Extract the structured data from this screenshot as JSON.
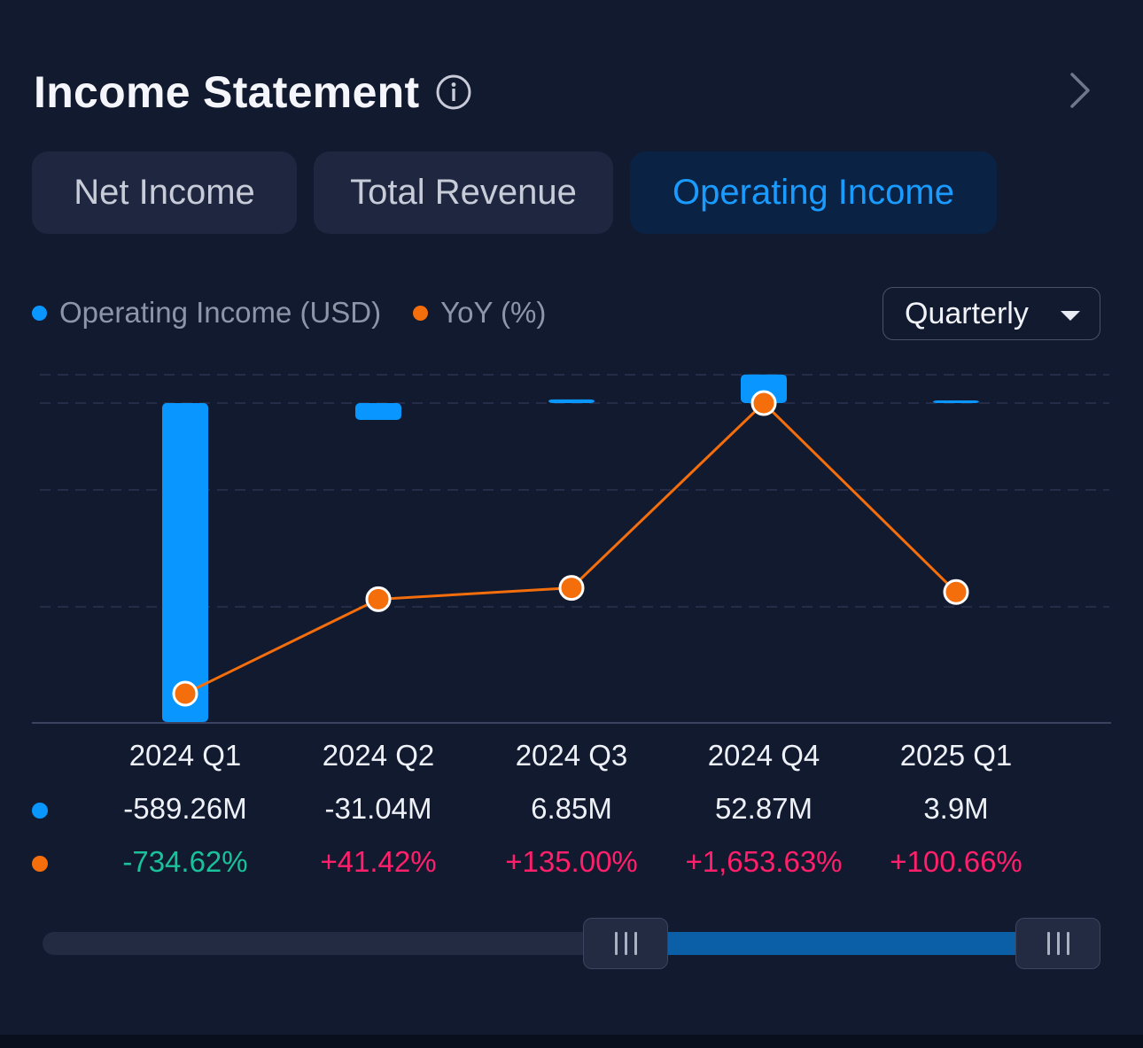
{
  "header": {
    "title": "Income Statement"
  },
  "tabs": [
    {
      "label": "Net Income",
      "active": false
    },
    {
      "label": "Total Revenue",
      "active": false
    },
    {
      "label": "Operating Income",
      "active": true
    }
  ],
  "legend": [
    {
      "label": "Operating Income (USD)",
      "color": "#0a96ff"
    },
    {
      "label": "YoY (%)",
      "color": "#f46e0c"
    }
  ],
  "period_select": {
    "value": "Quarterly"
  },
  "table": {
    "periods": [
      "2024 Q1",
      "2024 Q2",
      "2024 Q3",
      "2024 Q4",
      "2025 Q1"
    ],
    "values": [
      "-589.26M",
      "-31.04M",
      "6.85M",
      "52.87M",
      "3.9M"
    ],
    "yoy": [
      "-734.62%",
      "+41.42%",
      "+135.00%",
      "+1,653.63%",
      "+100.66%"
    ],
    "yoy_colors": [
      "#19c29a",
      "#ff1f6b",
      "#ff1f6b",
      "#ff1f6b",
      "#ff1f6b"
    ]
  },
  "chart_data": {
    "type": "bar",
    "categories": [
      "2024 Q1",
      "2024 Q2",
      "2024 Q3",
      "2024 Q4",
      "2025 Q1"
    ],
    "series": [
      {
        "name": "Operating Income (USD)",
        "kind": "bar",
        "unit": "M",
        "values": [
          -589.26,
          -31.04,
          6.85,
          52.87,
          3.9
        ],
        "color": "#0a96ff"
      },
      {
        "name": "YoY (%)",
        "kind": "line",
        "values": [
          -734.62,
          41.42,
          135.0,
          1653.63,
          100.66
        ],
        "color": "#f46e0c"
      }
    ],
    "grid": true,
    "legend_position": "top-left"
  },
  "colors": {
    "accent": "#1a9bff",
    "positive": "#ff1f6b",
    "negative": "#19c29a"
  }
}
